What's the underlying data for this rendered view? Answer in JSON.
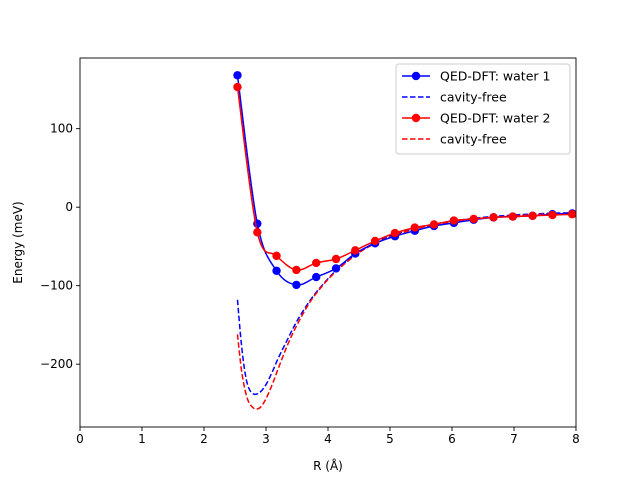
{
  "chart_data": {
    "type": "line",
    "title": "",
    "xlabel": "R (Å)",
    "ylabel": "Energy (meV)",
    "xlim": [
      0,
      8
    ],
    "ylim": [
      -280,
      190
    ],
    "x_ticks": [
      0,
      1,
      2,
      3,
      4,
      5,
      6,
      7,
      8
    ],
    "y_ticks": [
      -200,
      -100,
      0,
      100
    ],
    "tick_labels_x": [
      "0",
      "1",
      "2",
      "3",
      "4",
      "5",
      "6",
      "7",
      "8"
    ],
    "tick_labels_y": [
      "−200",
      "−100",
      "0",
      "100"
    ],
    "grid": false,
    "legend_position": "top-right",
    "series": [
      {
        "name": "QED-DFT: water 1",
        "color": "#0000ff",
        "style": "solid-marker",
        "x": [
          2.54,
          2.86,
          3.17,
          3.49,
          3.81,
          4.13,
          4.44,
          4.76,
          5.08,
          5.4,
          5.71,
          6.03,
          6.35,
          6.67,
          6.98,
          7.3,
          7.62,
          7.94
        ],
        "y": [
          168,
          -21,
          -81,
          -99,
          -89,
          -78,
          -59,
          -46,
          -37,
          -30,
          -24,
          -20,
          -16,
          -13,
          -12,
          -11,
          -9,
          -8
        ]
      },
      {
        "name": "cavity-free",
        "color": "#0000ff",
        "style": "dashed",
        "x": [
          2.54,
          2.6,
          2.66,
          2.72,
          2.8,
          2.9,
          3.0,
          3.1,
          3.2,
          3.35,
          3.5,
          3.7,
          3.9,
          4.1,
          4.3,
          4.6,
          5.0,
          5.5,
          6.0,
          6.5,
          7.0,
          7.5,
          8.0
        ],
        "y": [
          -118,
          -172,
          -210,
          -230,
          -238,
          -236,
          -226,
          -210,
          -192,
          -168,
          -145,
          -120,
          -100,
          -83,
          -69,
          -52,
          -37,
          -25,
          -18,
          -13,
          -10,
          -8,
          -7
        ]
      },
      {
        "name": "QED-DFT: water 2",
        "color": "#ff0000",
        "style": "solid-marker",
        "x": [
          2.54,
          2.86,
          3.17,
          3.49,
          3.81,
          4.13,
          4.44,
          4.76,
          5.08,
          5.4,
          5.71,
          6.03,
          6.35,
          6.67,
          6.98,
          7.3,
          7.62,
          7.94
        ],
        "y": [
          153,
          -32,
          -62,
          -80,
          -71,
          -66,
          -55,
          -43,
          -33,
          -26,
          -22,
          -17,
          -15,
          -13,
          -12,
          -11,
          -10,
          -9
        ]
      },
      {
        "name": "cavity-free",
        "color": "#ff0000",
        "style": "dashed",
        "x": [
          2.54,
          2.6,
          2.66,
          2.72,
          2.8,
          2.86,
          2.92,
          3.0,
          3.1,
          3.2,
          3.35,
          3.5,
          3.7,
          3.9,
          4.1,
          4.3,
          4.6,
          5.0,
          5.5,
          6.0,
          6.5,
          7.0,
          7.5,
          8.0
        ],
        "y": [
          -162,
          -205,
          -232,
          -248,
          -256,
          -257,
          -254,
          -244,
          -226,
          -205,
          -175,
          -150,
          -122,
          -101,
          -84,
          -70,
          -53,
          -38,
          -26,
          -19,
          -14,
          -11,
          -9,
          -8
        ]
      }
    ]
  }
}
